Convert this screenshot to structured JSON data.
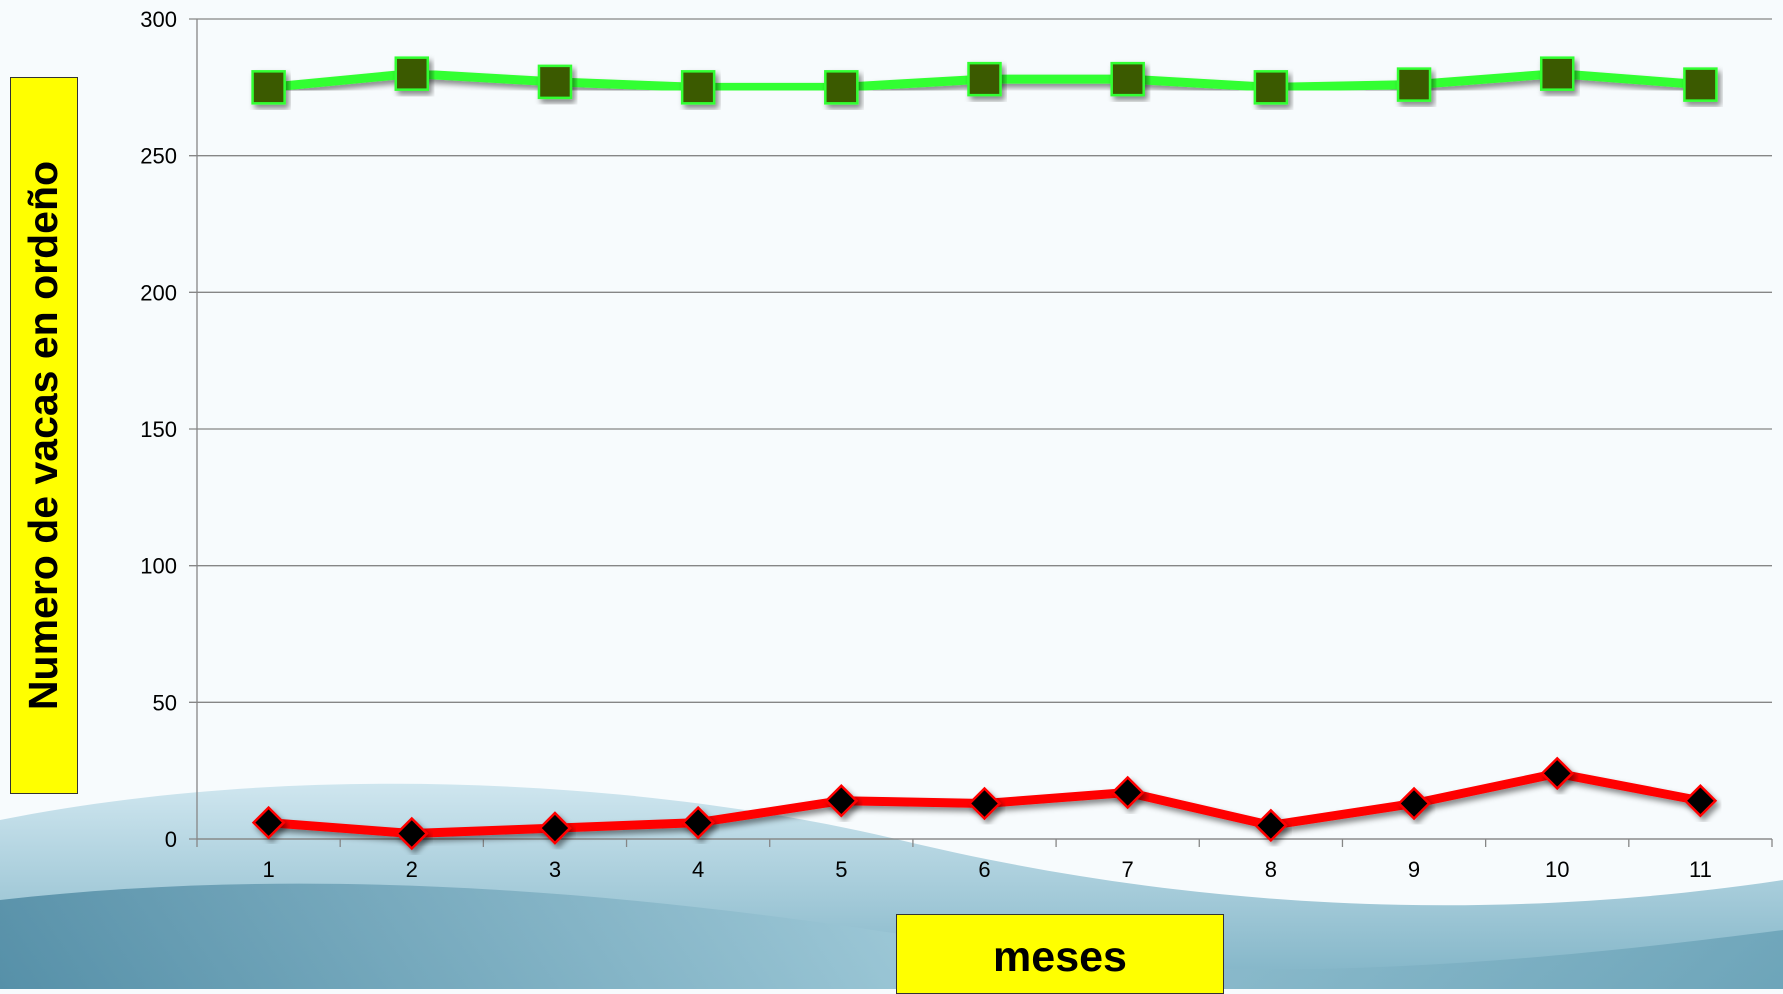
{
  "chart_data": {
    "type": "line",
    "title": "",
    "xlabel": "meses",
    "ylabel": "Numero de vacas en ordeño",
    "categories": [
      "1",
      "2",
      "3",
      "4",
      "5",
      "6",
      "7",
      "8",
      "9",
      "10",
      "11"
    ],
    "ylim": [
      0,
      300
    ],
    "yticks": [
      0,
      50,
      100,
      150,
      200,
      250,
      300
    ],
    "grid": true,
    "legend": "none",
    "series": [
      {
        "values": [
          275,
          280,
          277,
          275,
          275,
          278,
          278,
          275,
          276,
          280,
          276
        ],
        "line_color": "#33ff33",
        "marker": "square",
        "marker_color": "#3a5a00"
      },
      {
        "values": [
          6,
          2,
          4,
          6,
          14,
          13,
          17,
          5,
          13,
          24,
          14
        ],
        "line_color": "#ff0000",
        "marker": "diamond",
        "marker_color": "#000000"
      }
    ]
  }
}
